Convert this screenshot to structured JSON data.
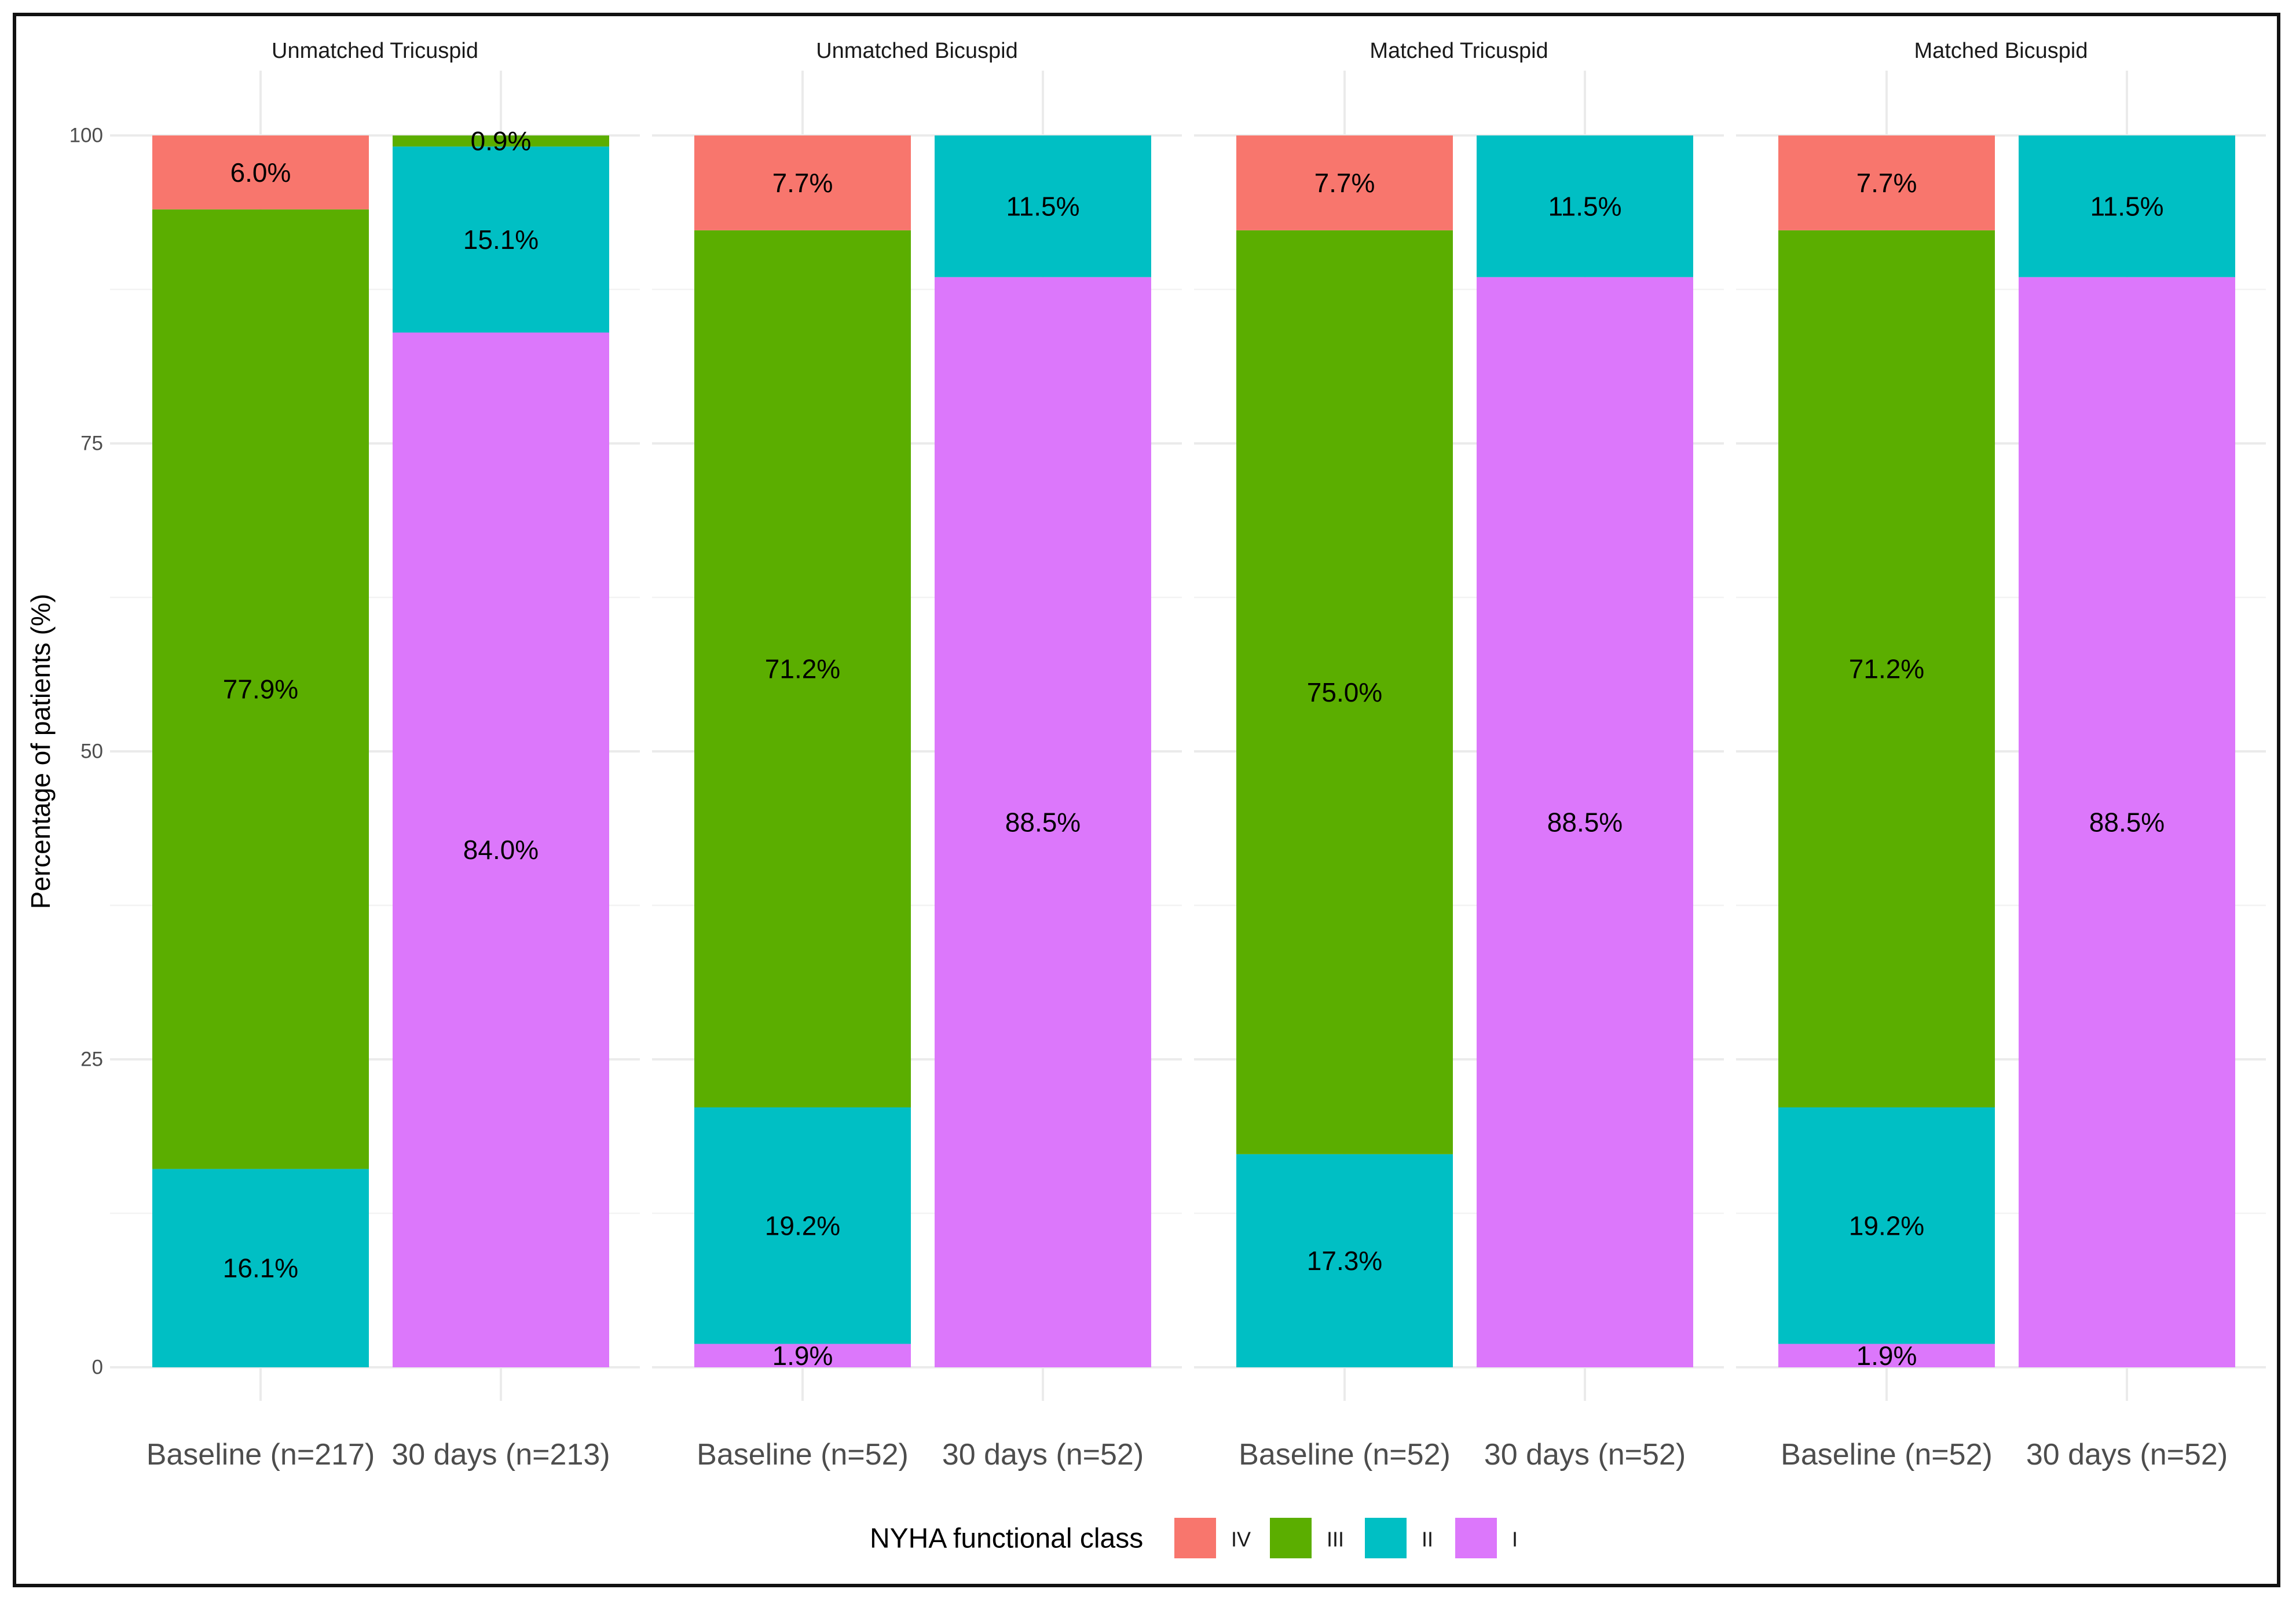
{
  "chart_data": {
    "type": "bar",
    "stacked": true,
    "ylabel": "Percentage of patients (%)",
    "ylim": [
      0,
      100
    ],
    "yticks": [
      "0",
      "25",
      "50",
      "75",
      "100"
    ],
    "grid": true,
    "legend": {
      "title": "NYHA functional class",
      "placement": "bottom",
      "items": [
        {
          "label": "IV",
          "color": "#F8766D"
        },
        {
          "label": "III",
          "color": "#5BAE00"
        },
        {
          "label": "II",
          "color": "#00BFC4"
        },
        {
          "label": "I",
          "color": "#DC77FB"
        }
      ]
    },
    "panels": [
      {
        "title": "Unmatched Tricuspid",
        "bars": [
          {
            "label": "Baseline (n=217)",
            "segments": [
              {
                "class": "II",
                "value": 16.1,
                "text": "16.1%"
              },
              {
                "class": "III",
                "value": 77.9,
                "text": "77.9%"
              },
              {
                "class": "IV",
                "value": 6.0,
                "text": "6.0%"
              }
            ]
          },
          {
            "label": "30 days (n=213)",
            "segments": [
              {
                "class": "I",
                "value": 84.0,
                "text": "84.0%"
              },
              {
                "class": "II",
                "value": 15.1,
                "text": "15.1%"
              },
              {
                "class": "III",
                "value": 0.9,
                "text": "0.9%"
              }
            ]
          }
        ]
      },
      {
        "title": "Unmatched Bicuspid",
        "bars": [
          {
            "label": "Baseline (n=52)",
            "segments": [
              {
                "class": "I",
                "value": 1.9,
                "text": "1.9%"
              },
              {
                "class": "II",
                "value": 19.2,
                "text": "19.2%"
              },
              {
                "class": "III",
                "value": 71.2,
                "text": "71.2%"
              },
              {
                "class": "IV",
                "value": 7.7,
                "text": "7.7%"
              }
            ]
          },
          {
            "label": "30 days (n=52)",
            "segments": [
              {
                "class": "I",
                "value": 88.5,
                "text": "88.5%"
              },
              {
                "class": "II",
                "value": 11.5,
                "text": "11.5%"
              }
            ]
          }
        ]
      },
      {
        "title": "Matched Tricuspid",
        "bars": [
          {
            "label": "Baseline (n=52)",
            "segments": [
              {
                "class": "II",
                "value": 17.3,
                "text": "17.3%"
              },
              {
                "class": "III",
                "value": 75.0,
                "text": "75.0%"
              },
              {
                "class": "IV",
                "value": 7.7,
                "text": "7.7%"
              }
            ]
          },
          {
            "label": "30 days (n=52)",
            "segments": [
              {
                "class": "I",
                "value": 88.5,
                "text": "88.5%"
              },
              {
                "class": "II",
                "value": 11.5,
                "text": "11.5%"
              }
            ]
          }
        ]
      },
      {
        "title": "Matched Bicuspid",
        "bars": [
          {
            "label": "Baseline (n=52)",
            "segments": [
              {
                "class": "I",
                "value": 1.9,
                "text": "1.9%"
              },
              {
                "class": "II",
                "value": 19.2,
                "text": "19.2%"
              },
              {
                "class": "III",
                "value": 71.2,
                "text": "71.2%"
              },
              {
                "class": "IV",
                "value": 7.7,
                "text": "7.7%"
              }
            ]
          },
          {
            "label": "30 days (n=52)",
            "segments": [
              {
                "class": "I",
                "value": 88.5,
                "text": "88.5%"
              },
              {
                "class": "II",
                "value": 11.5,
                "text": "11.5%"
              }
            ]
          }
        ]
      }
    ]
  }
}
